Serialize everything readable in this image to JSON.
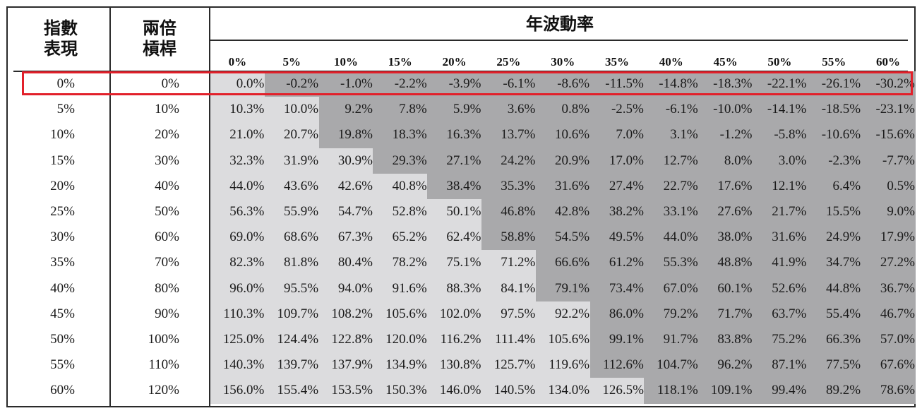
{
  "headers": {
    "index_perf": [
      "指數",
      "表現"
    ],
    "leveraged": [
      "兩倍",
      "槓桿"
    ],
    "volatility": "年波動率"
  },
  "volatility_levels": [
    "0%",
    "5%",
    "10%",
    "15%",
    "20%",
    "25%",
    "30%",
    "35%",
    "40%",
    "45%",
    "50%",
    "55%",
    "60%"
  ],
  "rows": [
    {
      "index": "0%",
      "lev": "0%",
      "values": [
        "0.0%",
        "-0.2%",
        "-1.0%",
        "-2.2%",
        "-3.9%",
        "-6.1%",
        "-8.6%",
        "-11.5%",
        "-14.8%",
        "-18.3%",
        "-22.1%",
        "-26.1%",
        "-30.2%"
      ]
    },
    {
      "index": "5%",
      "lev": "10%",
      "values": [
        "10.3%",
        "10.0%",
        "9.2%",
        "7.8%",
        "5.9%",
        "3.6%",
        "0.8%",
        "-2.5%",
        "-6.1%",
        "-10.0%",
        "-14.1%",
        "-18.5%",
        "-23.1%"
      ]
    },
    {
      "index": "10%",
      "lev": "20%",
      "values": [
        "21.0%",
        "20.7%",
        "19.8%",
        "18.3%",
        "16.3%",
        "13.7%",
        "10.6%",
        "7.0%",
        "3.1%",
        "-1.2%",
        "-5.8%",
        "-10.6%",
        "-15.6%"
      ]
    },
    {
      "index": "15%",
      "lev": "30%",
      "values": [
        "32.3%",
        "31.9%",
        "30.9%",
        "29.3%",
        "27.1%",
        "24.2%",
        "20.9%",
        "17.0%",
        "12.7%",
        "8.0%",
        "3.0%",
        "-2.3%",
        "-7.7%"
      ]
    },
    {
      "index": "20%",
      "lev": "40%",
      "values": [
        "44.0%",
        "43.6%",
        "42.6%",
        "40.8%",
        "38.4%",
        "35.3%",
        "31.6%",
        "27.4%",
        "22.7%",
        "17.6%",
        "12.1%",
        "6.4%",
        "0.5%"
      ]
    },
    {
      "index": "25%",
      "lev": "50%",
      "values": [
        "56.3%",
        "55.9%",
        "54.7%",
        "52.8%",
        "50.1%",
        "46.8%",
        "42.8%",
        "38.2%",
        "33.1%",
        "27.6%",
        "21.7%",
        "15.5%",
        "9.0%"
      ]
    },
    {
      "index": "30%",
      "lev": "60%",
      "values": [
        "69.0%",
        "68.6%",
        "67.3%",
        "65.2%",
        "62.4%",
        "58.8%",
        "54.5%",
        "49.5%",
        "44.0%",
        "38.0%",
        "31.6%",
        "24.9%",
        "17.9%"
      ]
    },
    {
      "index": "35%",
      "lev": "70%",
      "values": [
        "82.3%",
        "81.8%",
        "80.4%",
        "78.2%",
        "75.1%",
        "71.2%",
        "66.6%",
        "61.2%",
        "55.3%",
        "48.8%",
        "41.9%",
        "34.7%",
        "27.2%"
      ]
    },
    {
      "index": "40%",
      "lev": "80%",
      "values": [
        "96.0%",
        "95.5%",
        "94.0%",
        "91.6%",
        "88.3%",
        "84.1%",
        "79.1%",
        "73.4%",
        "67.0%",
        "60.1%",
        "52.6%",
        "44.8%",
        "36.7%"
      ]
    },
    {
      "index": "45%",
      "lev": "90%",
      "values": [
        "110.3%",
        "109.7%",
        "108.2%",
        "105.6%",
        "102.0%",
        "97.5%",
        "92.2%",
        "86.0%",
        "79.2%",
        "71.7%",
        "63.7%",
        "55.4%",
        "46.7%"
      ]
    },
    {
      "index": "50%",
      "lev": "100%",
      "values": [
        "125.0%",
        "124.4%",
        "122.8%",
        "120.0%",
        "116.2%",
        "111.4%",
        "105.6%",
        "99.1%",
        "91.7%",
        "83.8%",
        "75.2%",
        "66.3%",
        "57.0%"
      ]
    },
    {
      "index": "55%",
      "lev": "110%",
      "values": [
        "140.3%",
        "139.7%",
        "137.9%",
        "134.9%",
        "130.8%",
        "125.7%",
        "119.6%",
        "112.6%",
        "104.7%",
        "96.2%",
        "87.1%",
        "77.5%",
        "67.6%"
      ]
    },
    {
      "index": "60%",
      "lev": "120%",
      "values": [
        "156.0%",
        "155.4%",
        "153.5%",
        "150.3%",
        "146.0%",
        "140.5%",
        "134.0%",
        "126.5%",
        "118.1%",
        "109.1%",
        "99.4%",
        "89.2%",
        "78.6%"
      ]
    }
  ],
  "shading": {
    "light_color": "#dcdcde",
    "dark_color": "#a9a9ab",
    "dark_start_column_by_row": [
      1,
      2,
      2,
      3,
      4,
      5,
      5,
      6,
      6,
      7,
      7,
      7,
      8
    ]
  },
  "highlight": {
    "row": 0,
    "color": "#e2202a"
  }
}
